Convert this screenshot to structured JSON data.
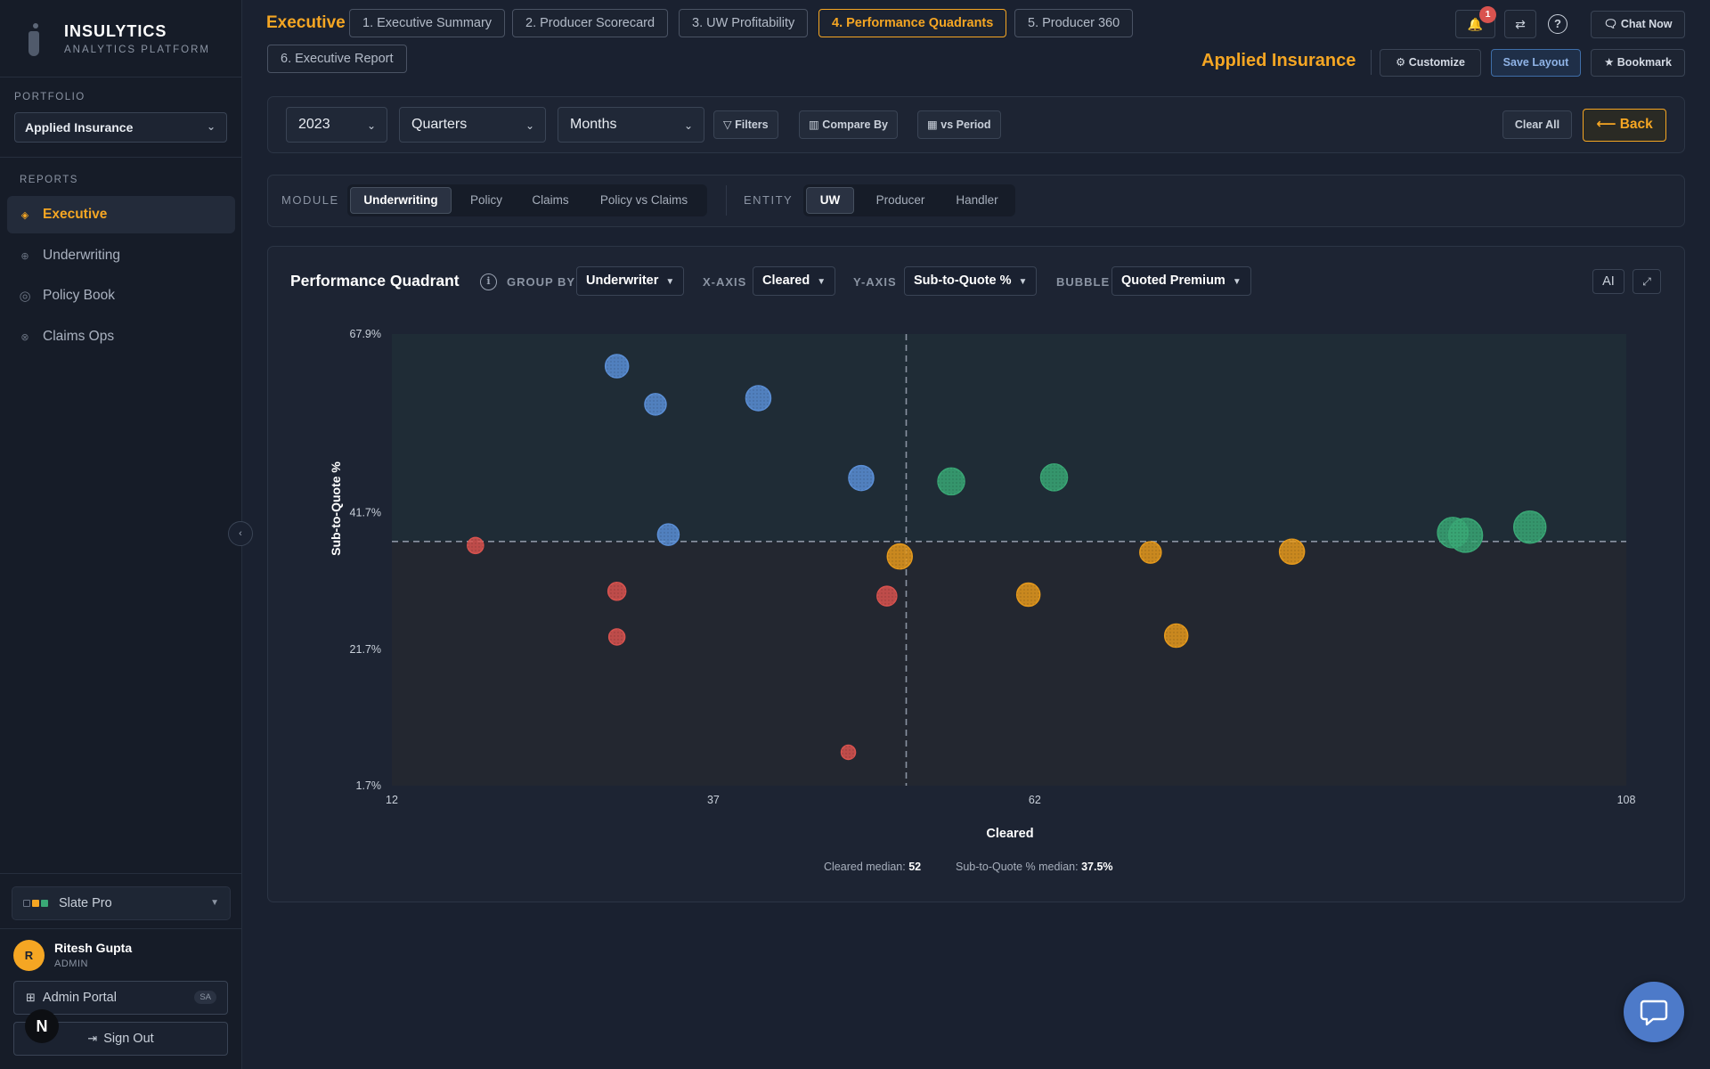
{
  "sidebar": {
    "brand_name": "INSULYTICS",
    "brand_sub": "ANALYTICS PLATFORM",
    "portfolio_label": "PORTFOLIO",
    "portfolio_value": "Applied Insurance",
    "reports_label": "REPORTS",
    "nav": [
      {
        "label": "Executive",
        "icon": "diamond-icon",
        "active": true
      },
      {
        "label": "Underwriting",
        "icon": "crosshair-icon",
        "active": false
      },
      {
        "label": "Policy Book",
        "icon": "ring-icon",
        "active": false
      },
      {
        "label": "Claims Ops",
        "icon": "x-circle-icon",
        "active": false
      }
    ],
    "theme": "Slate Pro",
    "user_initial": "R",
    "user_name": "Ritesh Gupta",
    "user_role": "ADMIN",
    "admin_portal": "Admin Portal",
    "admin_badge": "SA",
    "sign_out": "Sign Out",
    "next_badge": "N"
  },
  "header": {
    "title": "Executive",
    "tabs": [
      {
        "label": "1. Executive Summary",
        "active": false
      },
      {
        "label": "2. Producer Scorecard",
        "active": false
      },
      {
        "label": "3. UW Profitability",
        "active": false
      },
      {
        "label": "4. Performance Quadrants",
        "active": true
      },
      {
        "label": "5. Producer 360",
        "active": false
      },
      {
        "label": "6. Executive Report",
        "active": false
      }
    ],
    "notification_count": "1",
    "chat_now": "Chat Now",
    "company": "Applied Insurance",
    "customize": "Customize",
    "save_layout": "Save Layout",
    "bookmark": "Bookmark"
  },
  "filters": {
    "year": "2023",
    "quarters": "Quarters",
    "months": "Months",
    "filters_btn": "Filters",
    "compare_by": "Compare By",
    "vs_period": "vs Period",
    "clear_all": "Clear All",
    "back": "Back"
  },
  "module": {
    "label": "MODULE",
    "options": [
      "Underwriting",
      "Policy",
      "Claims",
      "Policy vs Claims"
    ],
    "selected": "Underwriting"
  },
  "entity": {
    "label": "ENTITY",
    "options": [
      "UW",
      "Producer",
      "Handler"
    ],
    "selected": "UW"
  },
  "chart_panel": {
    "title": "Performance Quadrant",
    "group_by_label": "GROUP BY",
    "group_by": "Underwriter",
    "x_axis_label": "X-AXIS",
    "x_axis": "Cleared",
    "y_axis_label": "Y-AXIS",
    "y_axis": "Sub-to-Quote %",
    "bubble_label": "BUBBLE",
    "bubble": "Quoted Premium",
    "ai_btn": "AI",
    "median_x_label": "Cleared median:",
    "median_x_value": "52",
    "median_y_label": "Sub-to-Quote % median:",
    "median_y_value": "37.5%"
  },
  "colors": {
    "accent": "#f5a623",
    "blue": "#5b8fd6",
    "green": "#3aa876",
    "orange": "#e69a1c",
    "red": "#d9534f"
  },
  "chart_data": {
    "type": "scatter",
    "xlabel": "Cleared",
    "ylabel": "Sub-to-Quote %",
    "xlim": [
      12,
      108
    ],
    "ylim": [
      1.7,
      67.9
    ],
    "x_ticks": [
      "12",
      "37",
      "62",
      "108"
    ],
    "y_ticks": [
      "67.9%",
      "41.7%",
      "21.7%",
      "1.7%"
    ],
    "x_median": 52,
    "y_median": 37.5,
    "bubble_metric": "Quoted Premium",
    "series": [
      {
        "quadrant": "high-y-low-x",
        "color": "#5b8fd6",
        "points": [
          {
            "x": 29.5,
            "y": 63.2,
            "size": 13
          },
          {
            "x": 32.5,
            "y": 57.6,
            "size": 12
          },
          {
            "x": 40.5,
            "y": 58.5,
            "size": 14
          },
          {
            "x": 48.5,
            "y": 46.8,
            "size": 14
          },
          {
            "x": 33.5,
            "y": 38.5,
            "size": 12
          }
        ]
      },
      {
        "quadrant": "high-y-high-x",
        "color": "#3aa876",
        "points": [
          {
            "x": 55.5,
            "y": 46.3,
            "size": 15
          },
          {
            "x": 63.5,
            "y": 46.9,
            "size": 15
          },
          {
            "x": 94.5,
            "y": 38.8,
            "size": 17
          },
          {
            "x": 95.5,
            "y": 38.4,
            "size": 19
          },
          {
            "x": 100.5,
            "y": 39.6,
            "size": 18
          }
        ]
      },
      {
        "quadrant": "low-y-high-x",
        "color": "#e69a1c",
        "points": [
          {
            "x": 51.5,
            "y": 35.3,
            "size": 14
          },
          {
            "x": 71.0,
            "y": 35.9,
            "size": 12
          },
          {
            "x": 61.5,
            "y": 29.7,
            "size": 13
          },
          {
            "x": 82.0,
            "y": 36.0,
            "size": 14
          },
          {
            "x": 73.0,
            "y": 23.7,
            "size": 13
          }
        ]
      },
      {
        "quadrant": "low-y-low-x",
        "color": "#d9534f",
        "points": [
          {
            "x": 18.5,
            "y": 36.9,
            "size": 9
          },
          {
            "x": 29.5,
            "y": 30.2,
            "size": 10
          },
          {
            "x": 29.5,
            "y": 23.5,
            "size": 9
          },
          {
            "x": 50.5,
            "y": 29.5,
            "size": 11
          },
          {
            "x": 47.5,
            "y": 6.6,
            "size": 8
          }
        ]
      }
    ]
  }
}
